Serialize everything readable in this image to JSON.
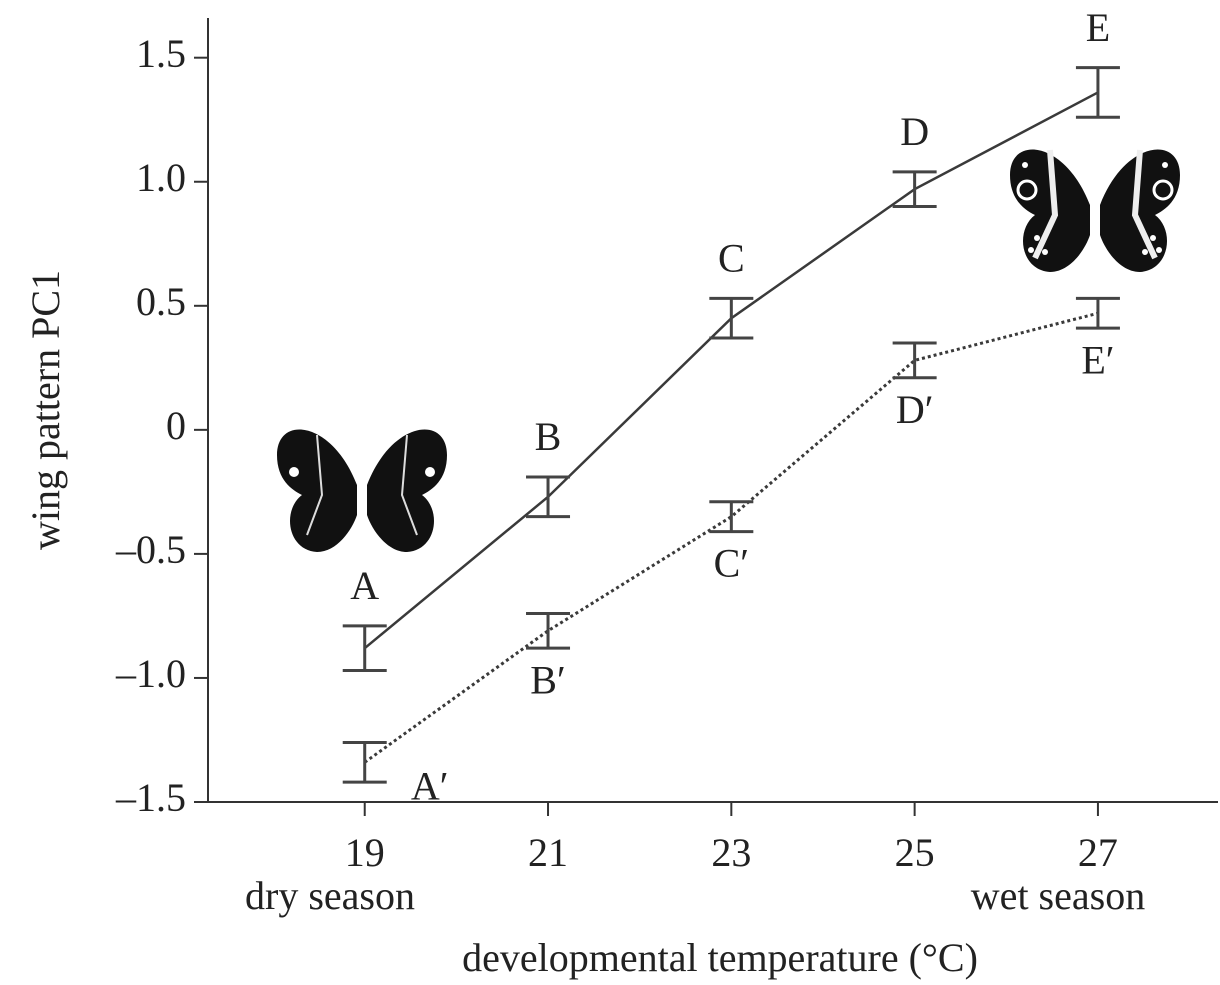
{
  "chart_data": {
    "type": "line",
    "x_label": "developmental temperature (°C)",
    "y_label": "wing pattern PC1",
    "season_labels": [
      "dry  season",
      "wet season"
    ],
    "x": [
      19,
      21,
      23,
      25,
      27
    ],
    "series": [
      {
        "point_labels": [
          "A",
          "B",
          "C",
          "D",
          "E"
        ],
        "color": "#3a3a3a",
        "dash": false,
        "values": [
          -0.88,
          -0.27,
          0.45,
          0.97,
          1.36
        ],
        "errors": [
          0.09,
          0.08,
          0.08,
          0.07,
          0.1
        ]
      },
      {
        "point_labels": [
          "A′",
          "B′",
          "C′",
          "D′",
          "E′"
        ],
        "color": "#3a3a3a",
        "dash": true,
        "values": [
          -1.34,
          -0.81,
          -0.35,
          0.28,
          0.47
        ],
        "errors": [
          0.08,
          0.07,
          0.06,
          0.07,
          0.06
        ]
      }
    ],
    "xlim": [
      17.29,
      28.31
    ],
    "ylim": [
      -1.5,
      1.66
    ],
    "xticks": [
      19,
      21,
      23,
      25,
      27
    ],
    "yticks": [
      {
        "value": -1.5,
        "label": "–1.5"
      },
      {
        "value": -1,
        "label": "–1.0"
      },
      {
        "value": -0.5,
        "label": "–0.5"
      },
      0,
      0.5,
      {
        "value": 1,
        "label": "1.0"
      },
      1.5
    ]
  }
}
